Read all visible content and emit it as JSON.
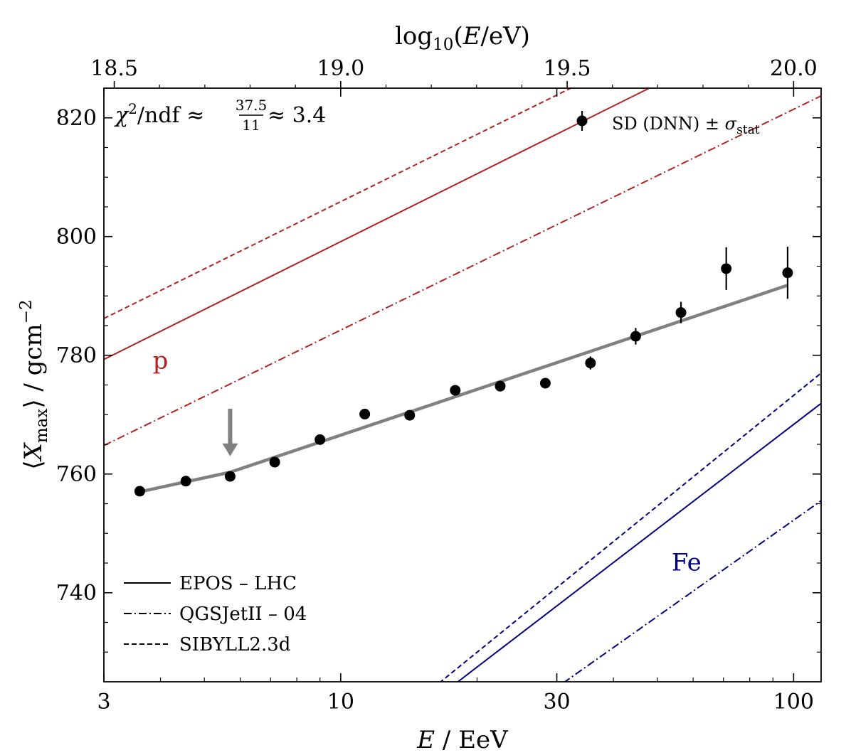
{
  "chart_data": {
    "type": "scatter",
    "title": "",
    "xlabel": "E / EeV",
    "ylabel": "⟨X_max⟩ / gcm⁻²",
    "top_xlabel": "log10(E/eV)",
    "x_scale": "log",
    "xlim": [
      3,
      115
    ],
    "ylim": [
      725,
      825
    ],
    "x_ticks": [
      {
        "value": 3,
        "label": "3"
      },
      {
        "value": 10,
        "label": "10"
      },
      {
        "value": 30,
        "label": "30"
      },
      {
        "value": 100,
        "label": "100"
      }
    ],
    "top_ticks": [
      {
        "value": 18.5,
        "label": "18.5"
      },
      {
        "value": 19.0,
        "label": "19.0"
      },
      {
        "value": 19.5,
        "label": "19.5"
      },
      {
        "value": 20.0,
        "label": "20.0"
      }
    ],
    "y_ticks": [
      {
        "value": 740,
        "label": "740"
      },
      {
        "value": 760,
        "label": "760"
      },
      {
        "value": 780,
        "label": "780"
      },
      {
        "value": 800,
        "label": "800"
      },
      {
        "value": 820,
        "label": "820"
      }
    ],
    "annotation": {
      "chi_label": "χ²/ndf ≈",
      "num": "37.5",
      "den": "11",
      "result": "≈ 3.4"
    },
    "data_series": {
      "name": "SD (DNN) ± σstat",
      "legend_prefix": "SD (DNN) ±",
      "legend_sigma": "σ",
      "legend_sub": "stat",
      "color": "#000000",
      "points": [
        {
          "x": 3.6,
          "y": 757.1,
          "err": 0.5
        },
        {
          "x": 4.55,
          "y": 758.8,
          "err": 0.5
        },
        {
          "x": 5.7,
          "y": 759.6,
          "err": 0.5
        },
        {
          "x": 7.15,
          "y": 762.0,
          "err": 0.5
        },
        {
          "x": 9.0,
          "y": 765.8,
          "err": 0.6
        },
        {
          "x": 11.3,
          "y": 770.1,
          "err": 0.6
        },
        {
          "x": 14.2,
          "y": 769.9,
          "err": 0.7
        },
        {
          "x": 17.9,
          "y": 774.1,
          "err": 0.7
        },
        {
          "x": 22.5,
          "y": 774.8,
          "err": 0.8
        },
        {
          "x": 28.3,
          "y": 775.3,
          "err": 0.9
        },
        {
          "x": 35.6,
          "y": 778.7,
          "err": 1.1
        },
        {
          "x": 44.8,
          "y": 783.2,
          "err": 1.4
        },
        {
          "x": 56.4,
          "y": 787.2,
          "err": 1.8
        },
        {
          "x": 71.0,
          "y": 794.6,
          "err": 3.6
        },
        {
          "x": 97.0,
          "y": 793.9,
          "err": 4.4
        }
      ]
    },
    "fit": {
      "name": "broken-line fit",
      "color": "#808080",
      "x": [
        3.6,
        5.7,
        97.0
      ],
      "y": [
        757.0,
        760.3,
        791.8
      ]
    },
    "break_marker": {
      "x": 5.7,
      "y_from": 771,
      "y_to": 763,
      "color": "#808080"
    },
    "model_lines": [
      {
        "primary": "p",
        "model": "EPOS-LHC",
        "style": "solid",
        "color": "#b22222",
        "x": [
          3,
          115
        ],
        "y": [
          779.3,
          839.4
        ]
      },
      {
        "primary": "p",
        "model": "QGSJetII-04",
        "style": "dashdot",
        "color": "#b22222",
        "x": [
          3,
          115
        ],
        "y": [
          764.8,
          823.7
        ]
      },
      {
        "primary": "p",
        "model": "SIBYLL2.3d",
        "style": "dashed",
        "color": "#b22222",
        "x": [
          3,
          115
        ],
        "y": [
          786.2,
          845.8
        ]
      },
      {
        "primary": "Fe",
        "model": "EPOS-LHC",
        "style": "solid",
        "color": "#00007f",
        "x": [
          18,
          115
        ],
        "y": [
          724.8,
          771.9
        ]
      },
      {
        "primary": "Fe",
        "model": "QGSJetII-04",
        "style": "dashdot",
        "color": "#00007f",
        "x": [
          31,
          115
        ],
        "y": [
          724.8,
          755.5
        ]
      },
      {
        "primary": "Fe",
        "model": "SIBYLL2.3d",
        "style": "dashed",
        "color": "#00007f",
        "x": [
          16.5,
          115
        ],
        "y": [
          724.8,
          777.0
        ]
      }
    ],
    "text_labels": [
      {
        "text": "p",
        "x": 4.0,
        "y": 779.2,
        "color": "#b22222"
      },
      {
        "text": "Fe",
        "x": 58.0,
        "y": 745.2,
        "color": "#00007f"
      }
    ],
    "legend_models": [
      {
        "label": "EPOS – LHC",
        "style": "solid"
      },
      {
        "label": "QGSJetII – 04",
        "style": "dashdot"
      },
      {
        "label": "SIBYLL2.3d",
        "style": "dashed"
      }
    ]
  }
}
